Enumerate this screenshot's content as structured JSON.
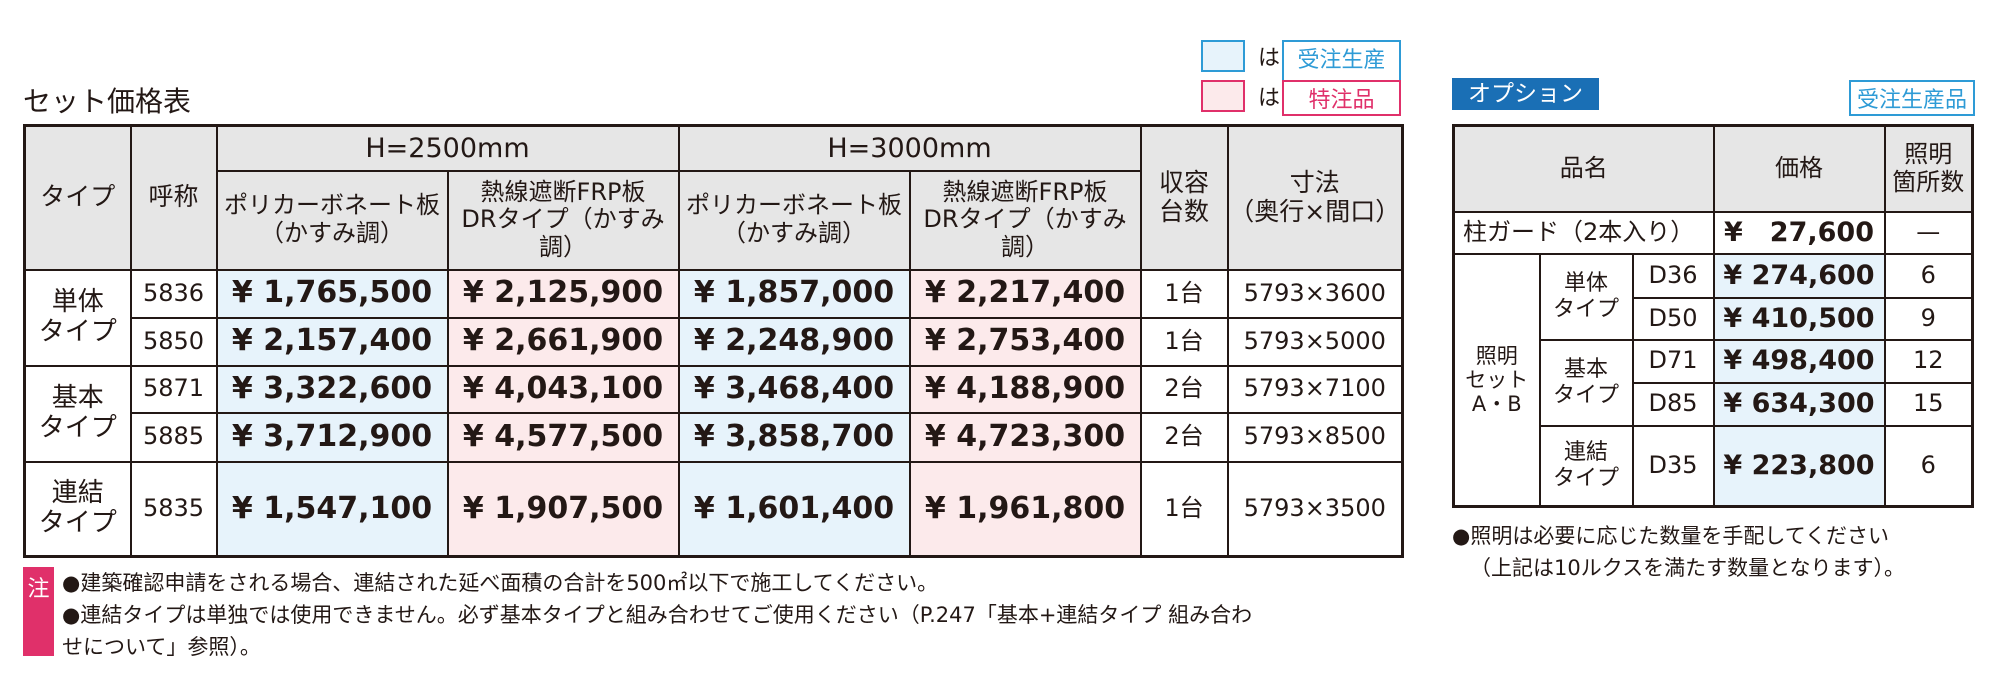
{
  "title": "セット価格表",
  "legend": [
    {
      "marker": "は",
      "label": "受注生産品"
    },
    {
      "marker": "は",
      "label": "特注品"
    }
  ],
  "table": {
    "header": {
      "type": "タイプ",
      "name": "呼称",
      "groups": [
        "H=2500mm",
        "H=3000mm"
      ],
      "sub": [
        [
          "ポリカーボネート板",
          "（かすみ調）"
        ],
        [
          "熱線遮断FRP板",
          "DRタイプ（かすみ調）"
        ],
        [
          "ポリカーボネート板",
          "（かすみ調）"
        ],
        [
          "熱線遮断FRP板",
          "DRタイプ（かすみ調）"
        ]
      ],
      "count": [
        "収容",
        "台数"
      ],
      "size": [
        "寸法",
        "（奥行×間口）"
      ]
    },
    "groups": [
      {
        "type": [
          "単体",
          "タイプ"
        ],
        "rows": [
          {
            "name": "5836",
            "prices": [
              "¥ 1,765,500",
              "¥ 2,125,900",
              "¥ 1,857,000",
              "¥ 2,217,400"
            ],
            "count": "1台",
            "size": "5793×3600"
          },
          {
            "name": "5850",
            "prices": [
              "¥ 2,157,400",
              "¥ 2,661,900",
              "¥ 2,248,900",
              "¥ 2,753,400"
            ],
            "count": "1台",
            "size": "5793×5000"
          }
        ]
      },
      {
        "type": [
          "基本",
          "タイプ"
        ],
        "rows": [
          {
            "name": "5871",
            "prices": [
              "¥ 3,322,600",
              "¥ 4,043,100",
              "¥ 3,468,400",
              "¥ 4,188,900"
            ],
            "count": "2台",
            "size": "5793×7100"
          },
          {
            "name": "5885",
            "prices": [
              "¥ 3,712,900",
              "¥ 4,577,500",
              "¥ 3,858,700",
              "¥ 4,723,300"
            ],
            "count": "2台",
            "size": "5793×8500"
          }
        ]
      },
      {
        "type": [
          "連結",
          "タイプ"
        ],
        "rows": [
          {
            "name": "5835",
            "prices": [
              "¥ 1,547,100",
              "¥ 1,907,500",
              "¥ 1,601,400",
              "¥ 1,961,800"
            ],
            "count": "1台",
            "size": "5793×3500"
          }
        ]
      }
    ]
  },
  "notes": {
    "mark": "注",
    "lines": [
      "●建築確認申請をされる場合、連結された延べ面積の合計を500㎡以下で施工してください。",
      "●連結タイプは単独では使用できません。必ず基本タイプと組み合わせてご使用ください（P.247「基本+連結タイプ 組み合わ",
      "せについて」参照）。"
    ]
  },
  "options": {
    "label": "オプション",
    "badge": "受注生産品",
    "header": {
      "item": "品名",
      "price": "価格",
      "count": [
        "照明",
        "箇所数"
      ]
    },
    "guard": {
      "item": "柱ガード（2本入り）",
      "price": "¥　27,600",
      "count": "—"
    },
    "lighting": {
      "name": [
        "照明",
        "セット",
        "A・B"
      ],
      "groups": [
        {
          "type": [
            "単体",
            "タイプ"
          ],
          "items": [
            {
              "code": "D36",
              "price": "¥ 274,600",
              "count": "6"
            },
            {
              "code": "D50",
              "price": "¥ 410,500",
              "count": "9"
            }
          ]
        },
        {
          "type": [
            "基本",
            "タイプ"
          ],
          "items": [
            {
              "code": "D71",
              "price": "¥ 498,400",
              "count": "12"
            },
            {
              "code": "D85",
              "price": "¥ 634,300",
              "count": "15"
            }
          ]
        },
        {
          "type": [
            "連結",
            "タイプ"
          ],
          "items": [
            {
              "code": "D35",
              "price": "¥ 223,800",
              "count": "6"
            }
          ]
        }
      ]
    },
    "notes": [
      "●照明は必要に応じた数量を手配してください",
      "（上記は10ルクスを満たす数量となります）。"
    ]
  }
}
